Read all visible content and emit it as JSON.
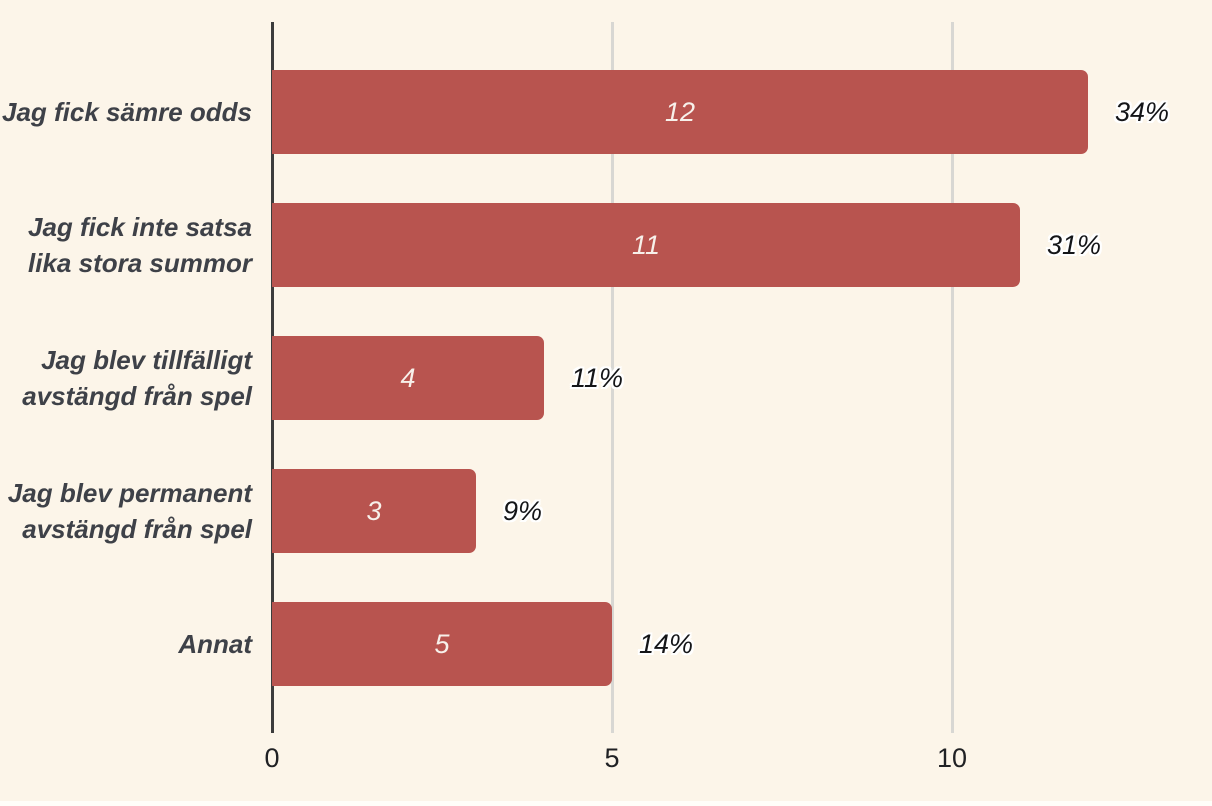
{
  "chart_data": {
    "type": "bar",
    "orientation": "horizontal",
    "title": "",
    "xlabel": "",
    "ylabel": "",
    "xlim": [
      0,
      13.8
    ],
    "grid": "vertical-gridlines-at-ticks",
    "legend": "none",
    "categories": [
      "Jag fick sämre odds",
      "Jag fick inte satsa\nlika stora summor",
      "Jag blev tillfälligt\navstängd från spel",
      "Jag blev permanent\navstängd från spel",
      "Annat"
    ],
    "values": [
      12,
      11,
      4,
      3,
      5
    ],
    "percentages": [
      "34%",
      "31%",
      "11%",
      "9%",
      "14%"
    ],
    "x_ticks": [
      {
        "label": "0",
        "value": 0
      },
      {
        "label": "5",
        "value": 5
      },
      {
        "label": "10",
        "value": 10
      }
    ],
    "colors": {
      "background": "#FCF5E9",
      "bottom_edge": "#FFFEF9",
      "bar": "#B8544F",
      "category_label": "#3E4148",
      "value_label": "#F7F0EA",
      "pct_label": "#141518",
      "tick_label": "#202124",
      "axis_line": "#3C3C3C",
      "gridline": "#D8D7D3"
    }
  }
}
